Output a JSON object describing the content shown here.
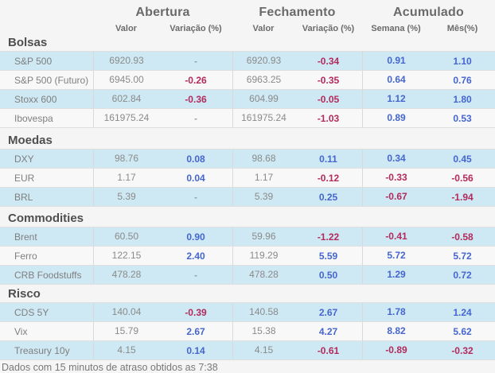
{
  "header": {
    "groups": [
      "Abertura",
      "Fechamento",
      "Acumulado"
    ],
    "columns": [
      "Valor",
      "Variação (%)",
      "Valor",
      "Variação (%)",
      "Semana (%)",
      "Mês(%)"
    ]
  },
  "colors": {
    "positive": "#4566d0",
    "negative": "#b32a5c",
    "row_highlight": "#cee9f3",
    "row_plain": "#f8f8f8",
    "background": "#f5f5f5"
  },
  "sections": [
    {
      "title": "Bolsas",
      "rows": [
        {
          "label": "S&P 500",
          "abertura_valor": "6920.93",
          "abertura_var": "-",
          "fechamento_valor": "6920.93",
          "fechamento_var": "-0.34",
          "semana": "0.91",
          "mes": "1.10"
        },
        {
          "label": "S&P 500 (Futuro)",
          "abertura_valor": "6945.00",
          "abertura_var": "-0.26",
          "fechamento_valor": "6963.25",
          "fechamento_var": "-0.35",
          "semana": "0.64",
          "mes": "0.76"
        },
        {
          "label": "Stoxx 600",
          "abertura_valor": "602.84",
          "abertura_var": "-0.36",
          "fechamento_valor": "604.99",
          "fechamento_var": "-0.05",
          "semana": "1.12",
          "mes": "1.80"
        },
        {
          "label": "Ibovespa",
          "abertura_valor": "161975.24",
          "abertura_var": "-",
          "fechamento_valor": "161975.24",
          "fechamento_var": "-1.03",
          "semana": "0.89",
          "mes": "0.53"
        }
      ]
    },
    {
      "title": "Moedas",
      "rows": [
        {
          "label": "DXY",
          "abertura_valor": "98.76",
          "abertura_var": "0.08",
          "fechamento_valor": "98.68",
          "fechamento_var": "0.11",
          "semana": "0.34",
          "mes": "0.45"
        },
        {
          "label": "EUR",
          "abertura_valor": "1.17",
          "abertura_var": "0.04",
          "fechamento_valor": "1.17",
          "fechamento_var": "-0.12",
          "semana": "-0.33",
          "mes": "-0.56"
        },
        {
          "label": "BRL",
          "abertura_valor": "5.39",
          "abertura_var": "-",
          "fechamento_valor": "5.39",
          "fechamento_var": "0.25",
          "semana": "-0.67",
          "mes": "-1.94"
        }
      ]
    },
    {
      "title": "Commodities",
      "rows": [
        {
          "label": "Brent",
          "abertura_valor": "60.50",
          "abertura_var": "0.90",
          "fechamento_valor": "59.96",
          "fechamento_var": "-1.22",
          "semana": "-0.41",
          "mes": "-0.58"
        },
        {
          "label": "Ferro",
          "abertura_valor": "122.15",
          "abertura_var": "2.40",
          "fechamento_valor": "119.29",
          "fechamento_var": "5.59",
          "semana": "5.72",
          "mes": "5.72"
        },
        {
          "label": "CRB Foodstuffs",
          "abertura_valor": "478.28",
          "abertura_var": "-",
          "fechamento_valor": "478.28",
          "fechamento_var": "0.50",
          "semana": "1.29",
          "mes": "0.72"
        }
      ]
    },
    {
      "title": "Risco",
      "rows": [
        {
          "label": "CDS 5Y",
          "abertura_valor": "140.04",
          "abertura_var": "-0.39",
          "fechamento_valor": "140.58",
          "fechamento_var": "2.67",
          "semana": "1.78",
          "mes": "1.24"
        },
        {
          "label": "Vix",
          "abertura_valor": "15.79",
          "abertura_var": "2.67",
          "fechamento_valor": "15.38",
          "fechamento_var": "4.27",
          "semana": "8.82",
          "mes": "5.62"
        },
        {
          "label": "Treasury 10y",
          "abertura_valor": "4.15",
          "abertura_var": "0.14",
          "fechamento_valor": "4.15",
          "fechamento_var": "-0.61",
          "semana": "-0.89",
          "mes": "-0.32"
        }
      ]
    }
  ],
  "footer": {
    "note": "Dados com 15 minutos de atraso obtidos as 7:38"
  }
}
